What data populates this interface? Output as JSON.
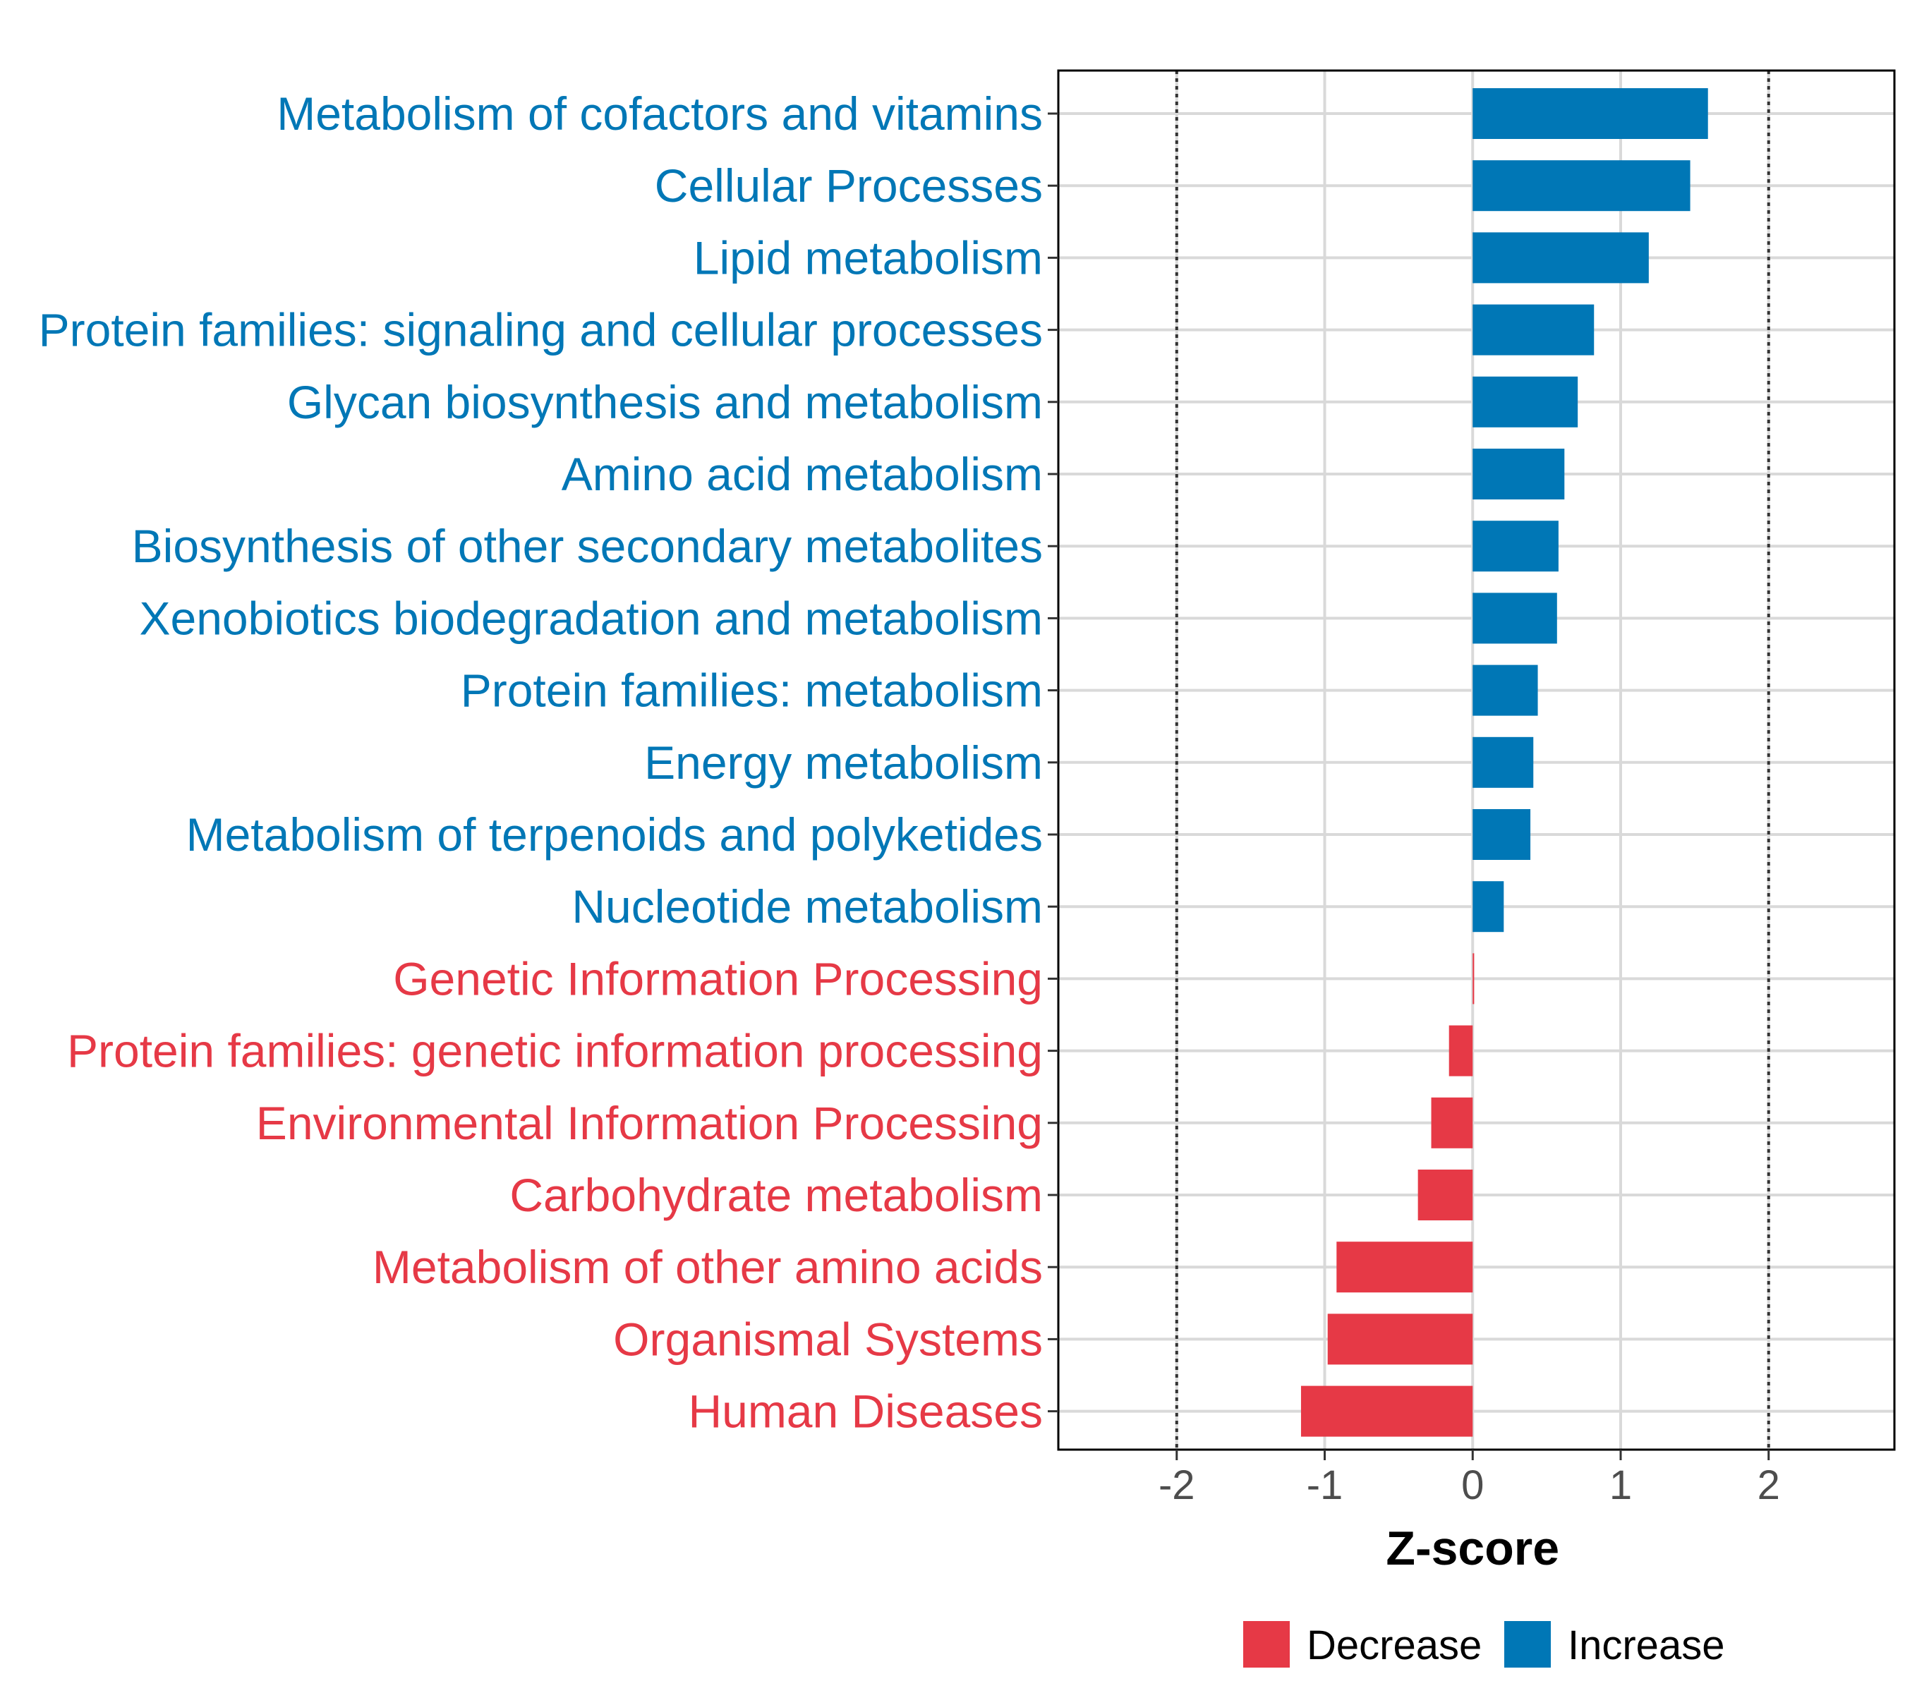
{
  "chart_data": {
    "type": "bar",
    "orientation": "horizontal",
    "title": "",
    "xlabel": "Z-score",
    "ylabel": "",
    "xlim": [
      -2.8,
      2.85
    ],
    "xticks": [
      "-2",
      "-1",
      "0",
      "1",
      "2"
    ],
    "xtick_values": [
      -2,
      -1,
      0,
      1,
      2
    ],
    "reference_lines": [
      -2,
      2
    ],
    "grid": true,
    "colors": {
      "Decrease": "#e63946",
      "Increase": "#0077b6"
    },
    "categories": [
      "Metabolism of cofactors and vitamins",
      "Cellular Processes",
      "Lipid metabolism",
      "Protein families: signaling and cellular processes",
      "Glycan biosynthesis and metabolism",
      "Amino acid metabolism",
      "Biosynthesis of other secondary metabolites",
      "Xenobiotics biodegradation and metabolism",
      "Protein families: metabolism",
      "Energy metabolism",
      "Metabolism of terpenoids and polyketides",
      "Nucleotide metabolism",
      "Genetic Information Processing",
      "Protein families: genetic information processing",
      "Environmental Information Processing",
      "Carbohydrate metabolism",
      "Metabolism of other amino acids",
      "Organismal Systems",
      "Human Diseases"
    ],
    "values": [
      1.59,
      1.47,
      1.19,
      0.82,
      0.71,
      0.62,
      0.58,
      0.57,
      0.44,
      0.41,
      0.39,
      0.21,
      0.01,
      -0.16,
      -0.28,
      -0.37,
      -0.92,
      -0.98,
      -1.16
    ],
    "groups": [
      "Increase",
      "Increase",
      "Increase",
      "Increase",
      "Increase",
      "Increase",
      "Increase",
      "Increase",
      "Increase",
      "Increase",
      "Increase",
      "Increase",
      "Decrease",
      "Decrease",
      "Decrease",
      "Decrease",
      "Decrease",
      "Decrease",
      "Decrease"
    ],
    "legend": {
      "position": "bottom",
      "entries": [
        "Decrease",
        "Increase"
      ]
    }
  }
}
